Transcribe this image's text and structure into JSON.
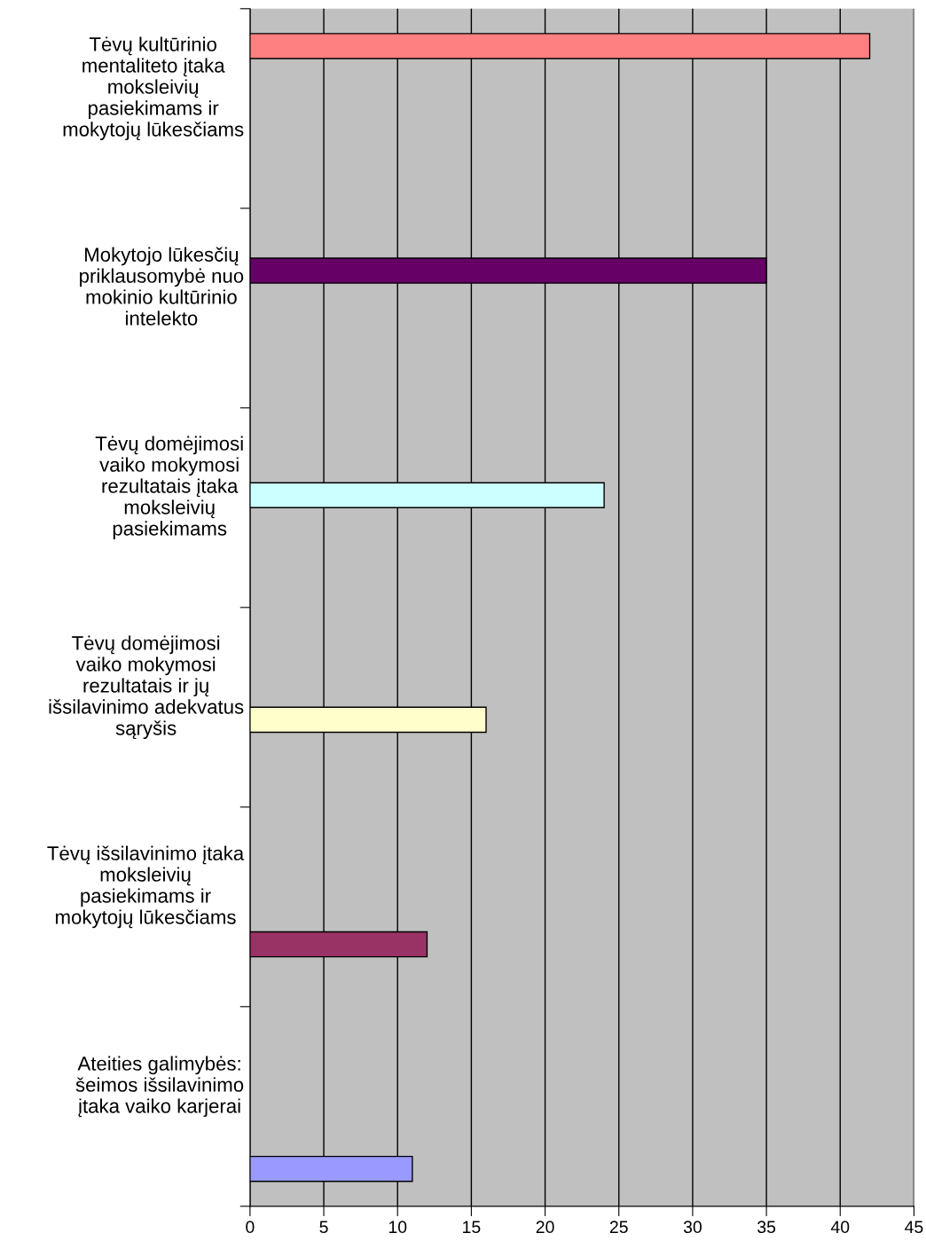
{
  "chart_data": {
    "type": "bar",
    "orientation": "horizontal",
    "categories": [
      "Tėvų kultūrinio\nmentaliteto įtaka\nmoksleivių\npasiekimams ir\nmokytojų lūkesčiams",
      "Mokytojo lūkesčių\npriklausomybė nuo\nmokinio kultūrinio\nintelekto",
      "Tėvų domėjimosi\nvaiko mokymosi\nrezultatais įtaka\nmoksleivių\npasiekimams",
      "Tėvų domėjimosi\nvaiko mokymosi\nrezultatais ir jų\nišsilavinimo adekvatus\nsąryšis",
      "Tėvų išsilavinimo įtaka\nmoksleivių\npasiekimams ir\nmokytojų lūkesčiams",
      "Ateities galimybės:\nšeimos išsilavinimo\nįtaka vaiko karjerai"
    ],
    "values": [
      42,
      35,
      24,
      16,
      12,
      11
    ],
    "colors": [
      "#ff8080",
      "#660066",
      "#ccffff",
      "#ffffcc",
      "#993366",
      "#9999ff"
    ],
    "xlim": [
      0,
      45
    ],
    "xticks": [
      0,
      5,
      10,
      15,
      20,
      25,
      30,
      35,
      40,
      45
    ],
    "grid": "x",
    "legend": false
  }
}
